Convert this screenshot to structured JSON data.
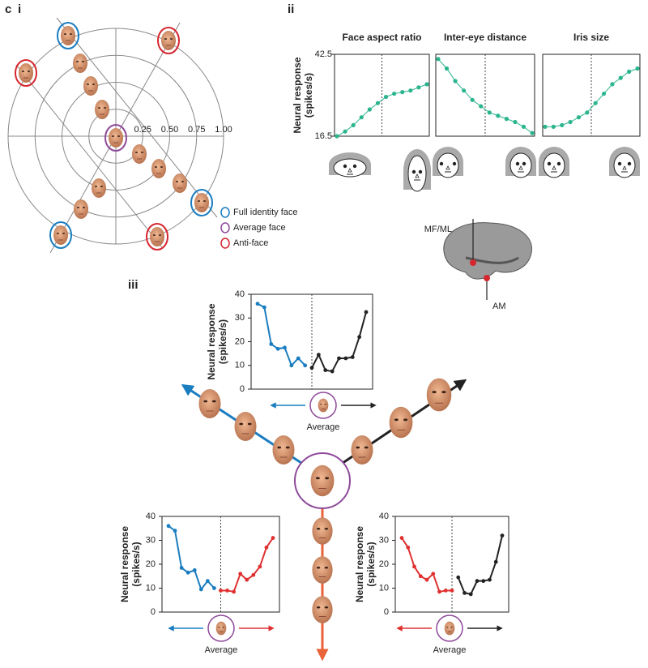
{
  "panel_labels": [
    "c",
    "i",
    "ii",
    "iii"
  ],
  "brain_labels": [
    "MF/ML",
    "AM"
  ],
  "chart_data": [
    {
      "type": "polar",
      "rticks": [
        0.25,
        {
          "value": 0.5,
          "label": "0.50"
        },
        0.75,
        {
          "value": 1,
          "label": "1.00"
        }
      ],
      "legend": [
        {
          "name": "Full identity face",
          "color": "#1a7dc0"
        },
        {
          "name": "Average face",
          "color": "#8e4a9a"
        },
        {
          "name": "Anti-face",
          "color": "#d6262e"
        }
      ]
    },
    {
      "type": "line",
      "title": "Face aspect ratio",
      "ylabel": [
        "Neural response",
        "(spikes/s)"
      ],
      "categories": [
        null,
        null,
        null,
        null,
        null,
        null,
        null,
        null,
        null,
        null,
        null,
        null
      ],
      "series": [
        {
          "color": "#2bb58e",
          "values": [
            16.5,
            18,
            20,
            22.5,
            25,
            27,
            29,
            30,
            30.5,
            31,
            32,
            33
          ]
        }
      ],
      "ylim": [
        16.5,
        42.5
      ],
      "yticks": [
        16.5,
        42.5
      ]
    },
    {
      "type": "line",
      "title": "Inter-eye distance",
      "categories": [
        null,
        null,
        null,
        null,
        null,
        null,
        null,
        null,
        null,
        null,
        null,
        null
      ],
      "series": [
        {
          "color": "#2bb58e",
          "values": [
            41,
            38,
            34,
            31,
            28,
            26,
            24,
            23,
            22,
            21,
            19.5,
            17.5
          ]
        }
      ],
      "ylim": [
        16.5,
        42.5
      ]
    },
    {
      "type": "line",
      "title": "Iris size",
      "categories": [
        null,
        null,
        null,
        null,
        null,
        null,
        null,
        null,
        null,
        null,
        null,
        null
      ],
      "series": [
        {
          "color": "#2bb58e",
          "values": [
            19.5,
            19.5,
            20,
            21,
            22.5,
            24,
            27,
            30,
            33,
            35,
            37,
            38
          ]
        }
      ],
      "ylim": [
        16.5,
        42.5
      ]
    },
    {
      "type": "line",
      "ylabel": [
        "Neural response",
        "(spikes/s)"
      ],
      "xlabel": "Average",
      "categories": [
        null,
        null,
        null,
        null,
        null,
        null,
        null,
        null,
        null,
        null,
        null,
        null,
        null,
        null,
        null,
        null,
        null
      ],
      "series": [
        {
          "color": "#1a7dc0",
          "values": [
            36,
            34.5,
            19,
            17,
            17.5,
            10,
            13,
            10,
            null,
            null,
            null,
            null,
            null,
            null,
            null,
            null,
            null
          ]
        },
        {
          "color": "#222222",
          "values": [
            null,
            null,
            null,
            null,
            null,
            null,
            null,
            null,
            9,
            14.5,
            8,
            7.5,
            13,
            13,
            13.5,
            22,
            32.5
          ]
        }
      ],
      "ylim": [
        0,
        40
      ],
      "yticks": [
        0,
        10,
        20,
        30,
        40
      ]
    },
    {
      "type": "line",
      "ylabel": [
        "Neural response",
        "(spikes/s)"
      ],
      "xlabel": "Average",
      "categories": [
        null,
        null,
        null,
        null,
        null,
        null,
        null,
        null,
        null,
        null,
        null,
        null,
        null,
        null,
        null,
        null,
        null
      ],
      "series": [
        {
          "color": "#1a7dc0",
          "values": [
            36,
            34,
            18.5,
            16.5,
            17.5,
            9.5,
            13,
            10,
            null,
            null,
            null,
            null,
            null,
            null,
            null,
            null,
            null
          ]
        },
        {
          "color": "#e03030",
          "values": [
            null,
            null,
            null,
            null,
            null,
            null,
            null,
            null,
            9,
            9,
            8.5,
            16,
            13.5,
            15.5,
            19,
            27,
            31
          ]
        }
      ],
      "ylim": [
        0,
        40
      ],
      "yticks": [
        0,
        10,
        20,
        30,
        40
      ]
    },
    {
      "type": "line",
      "ylabel": [
        "Neural response",
        "(spikes/s)"
      ],
      "xlabel": "Average",
      "categories": [
        null,
        null,
        null,
        null,
        null,
        null,
        null,
        null,
        null,
        null,
        null,
        null,
        null,
        null,
        null,
        null,
        null
      ],
      "series": [
        {
          "color": "#e03030",
          "values": [
            31,
            27,
            19,
            15,
            13.5,
            16,
            8.5,
            9,
            9,
            null,
            null,
            null,
            null,
            null,
            null,
            null,
            null
          ]
        },
        {
          "color": "#222222",
          "values": [
            null,
            null,
            null,
            null,
            null,
            null,
            null,
            null,
            null,
            14.5,
            8,
            7.5,
            13,
            13,
            13.5,
            21,
            32
          ]
        }
      ],
      "ylim": [
        0,
        40
      ],
      "yticks": [
        0,
        10,
        20,
        30,
        40
      ]
    }
  ]
}
